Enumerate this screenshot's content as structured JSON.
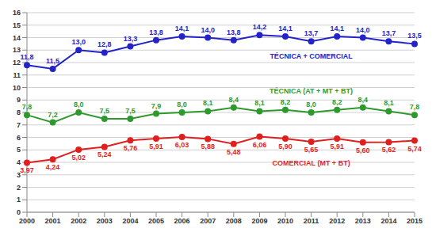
{
  "chart_data": {
    "type": "line",
    "categories": [
      "2000",
      "2001",
      "2002",
      "2003",
      "2004",
      "2005",
      "2006",
      "2007",
      "2008",
      "2009",
      "2010",
      "2011",
      "2012",
      "2013",
      "2014",
      "2015"
    ],
    "series": [
      {
        "name": "TÉCNICA + COMERCIAL",
        "color": "#2323c8",
        "marker": "circle",
        "values": [
          11.8,
          11.5,
          13.0,
          12.8,
          13.3,
          13.8,
          14.1,
          14.0,
          13.8,
          14.2,
          14.1,
          13.7,
          14.1,
          14.0,
          13.7,
          13.5
        ],
        "value_labels": [
          "11,8",
          "11,5",
          "13,0",
          "12,8",
          "13,3",
          "13,8",
          "14,1",
          "14,0",
          "13,8",
          "14,2",
          "14,1",
          "13,7",
          "14,1",
          "14,0",
          "13,7",
          "13,5"
        ]
      },
      {
        "name": "TÉCNICA (AT + MT + BT)",
        "color": "#2e9a2e",
        "marker": "circle",
        "values": [
          7.8,
          7.2,
          8.0,
          7.5,
          7.5,
          7.9,
          8.0,
          8.1,
          8.4,
          8.1,
          8.2,
          8.0,
          8.2,
          8.4,
          8.1,
          7.8
        ],
        "value_labels": [
          "7,8",
          "7,2",
          "8,0",
          "7,5",
          "7,5",
          "7,9",
          "8,0",
          "8,1",
          "8,4",
          "8,1",
          "8,2",
          "8,0",
          "8,2",
          "8,4",
          "8,1",
          "7,8"
        ]
      },
      {
        "name": "COMERCIAL (MT + BT)",
        "color": "#e01f1f",
        "marker": "circle",
        "values": [
          3.97,
          4.24,
          5.02,
          5.24,
          5.76,
          5.91,
          6.03,
          5.88,
          5.48,
          6.06,
          5.9,
          5.65,
          5.91,
          5.6,
          5.62,
          5.74
        ],
        "value_labels": [
          "3,97",
          "4,24",
          "5,02",
          "5,24",
          "5,76",
          "5,91",
          "6,03",
          "5,88",
          "5,48",
          "6,06",
          "5,90",
          "5,65",
          "5,91",
          "5,60",
          "5,62",
          "5,74"
        ]
      }
    ],
    "ylim": [
      0,
      16
    ],
    "yticks": [
      0,
      1,
      2,
      3,
      4,
      5,
      6,
      7,
      8,
      9,
      10,
      11,
      12,
      13,
      14,
      15,
      16
    ],
    "grid": true,
    "data_labels": true
  }
}
